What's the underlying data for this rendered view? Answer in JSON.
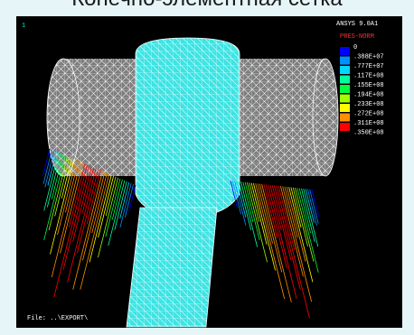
{
  "slide_title": "Конечно-элементная сетка",
  "viewport": {
    "window_number": "1",
    "program": "ANSYS 9.0A1",
    "result_label": "PRES-NORM",
    "file_label": "File: ..\\EXPORT\\",
    "legend": {
      "labels": [
        "0",
        ".388E+07",
        ".777E+07",
        ".117E+08",
        ".155E+08",
        ".194E+08",
        ".233E+08",
        ".272E+08",
        ".311E+08",
        ".350E+08"
      ],
      "colors": [
        "#0000ff",
        "#0090ff",
        "#00d8ff",
        "#00ffa0",
        "#00ff40",
        "#a0ff00",
        "#ffff00",
        "#ff9000",
        "#ff0000"
      ]
    }
  }
}
